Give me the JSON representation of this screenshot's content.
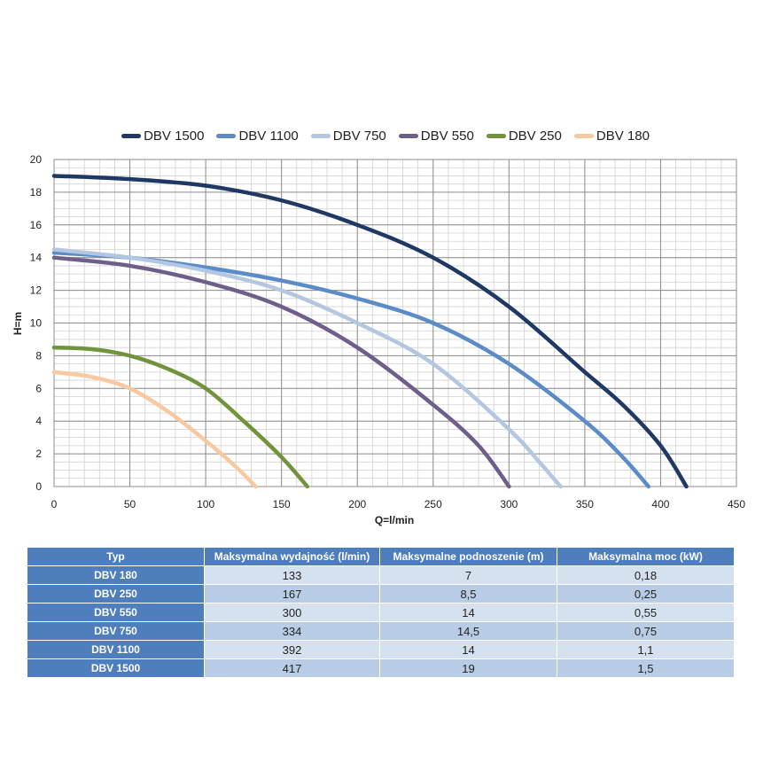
{
  "chart_data": {
    "type": "line",
    "xlabel": "Q=l/min",
    "ylabel": "H=m",
    "xlim": [
      0,
      450
    ],
    "ylim": [
      0,
      20
    ],
    "xticks": [
      "0",
      "50",
      "100",
      "150",
      "200",
      "250",
      "300",
      "350",
      "400",
      "450"
    ],
    "yticks": [
      "0",
      "2",
      "4",
      "6",
      "8",
      "10",
      "12",
      "14",
      "16",
      "18",
      "20"
    ],
    "grid": true,
    "legend_position": "top",
    "series": [
      {
        "name": "DBV 1500",
        "color": "#1f3864",
        "x": [
          0,
          50,
          100,
          150,
          200,
          250,
          300,
          350,
          375,
          400,
          417
        ],
        "y": [
          19,
          18.8,
          18.4,
          17.5,
          16,
          14,
          11,
          7,
          5,
          2.5,
          0
        ]
      },
      {
        "name": "DBV 1100",
        "color": "#5b8cc8",
        "x": [
          0,
          50,
          100,
          150,
          200,
          250,
          300,
          350,
          375,
          392
        ],
        "y": [
          14.3,
          14,
          13.4,
          12.6,
          11.5,
          10,
          7.5,
          4,
          1.8,
          0
        ]
      },
      {
        "name": "DBV 750",
        "color": "#b4c7e0",
        "x": [
          0,
          50,
          100,
          150,
          200,
          250,
          300,
          320,
          334
        ],
        "y": [
          14.5,
          14,
          13.2,
          12,
          10,
          7.5,
          3.5,
          1.5,
          0
        ]
      },
      {
        "name": "DBV 550",
        "color": "#6d5f8a",
        "x": [
          0,
          50,
          100,
          150,
          200,
          250,
          280,
          300
        ],
        "y": [
          14,
          13.5,
          12.5,
          11,
          8.5,
          5,
          2.5,
          0
        ]
      },
      {
        "name": "DBV 250",
        "color": "#70933c",
        "x": [
          0,
          25,
          50,
          75,
          100,
          125,
          150,
          167
        ],
        "y": [
          8.5,
          8.4,
          8,
          7.2,
          6,
          4,
          1.8,
          0
        ]
      },
      {
        "name": "DBV 180",
        "color": "#f8c9a0",
        "x": [
          0,
          25,
          50,
          75,
          100,
          120,
          133
        ],
        "y": [
          7,
          6.7,
          6,
          4.6,
          2.8,
          1.2,
          0
        ]
      }
    ]
  },
  "table": {
    "headers": [
      "Typ",
      "Maksymalna wydajność (l/min)",
      "Maksymalne podnoszenie (m)",
      "Maksymalna moc (kW)"
    ],
    "rows": [
      [
        "DBV 180",
        "133",
        "7",
        "0,18"
      ],
      [
        "DBV 250",
        "167",
        "8,5",
        "0,25"
      ],
      [
        "DBV 550",
        "300",
        "14",
        "0,55"
      ],
      [
        "DBV 750",
        "334",
        "14,5",
        "0,75"
      ],
      [
        "DBV 1100",
        "392",
        "14",
        "1,1"
      ],
      [
        "DBV 1500",
        "417",
        "19",
        "1,5"
      ]
    ]
  }
}
